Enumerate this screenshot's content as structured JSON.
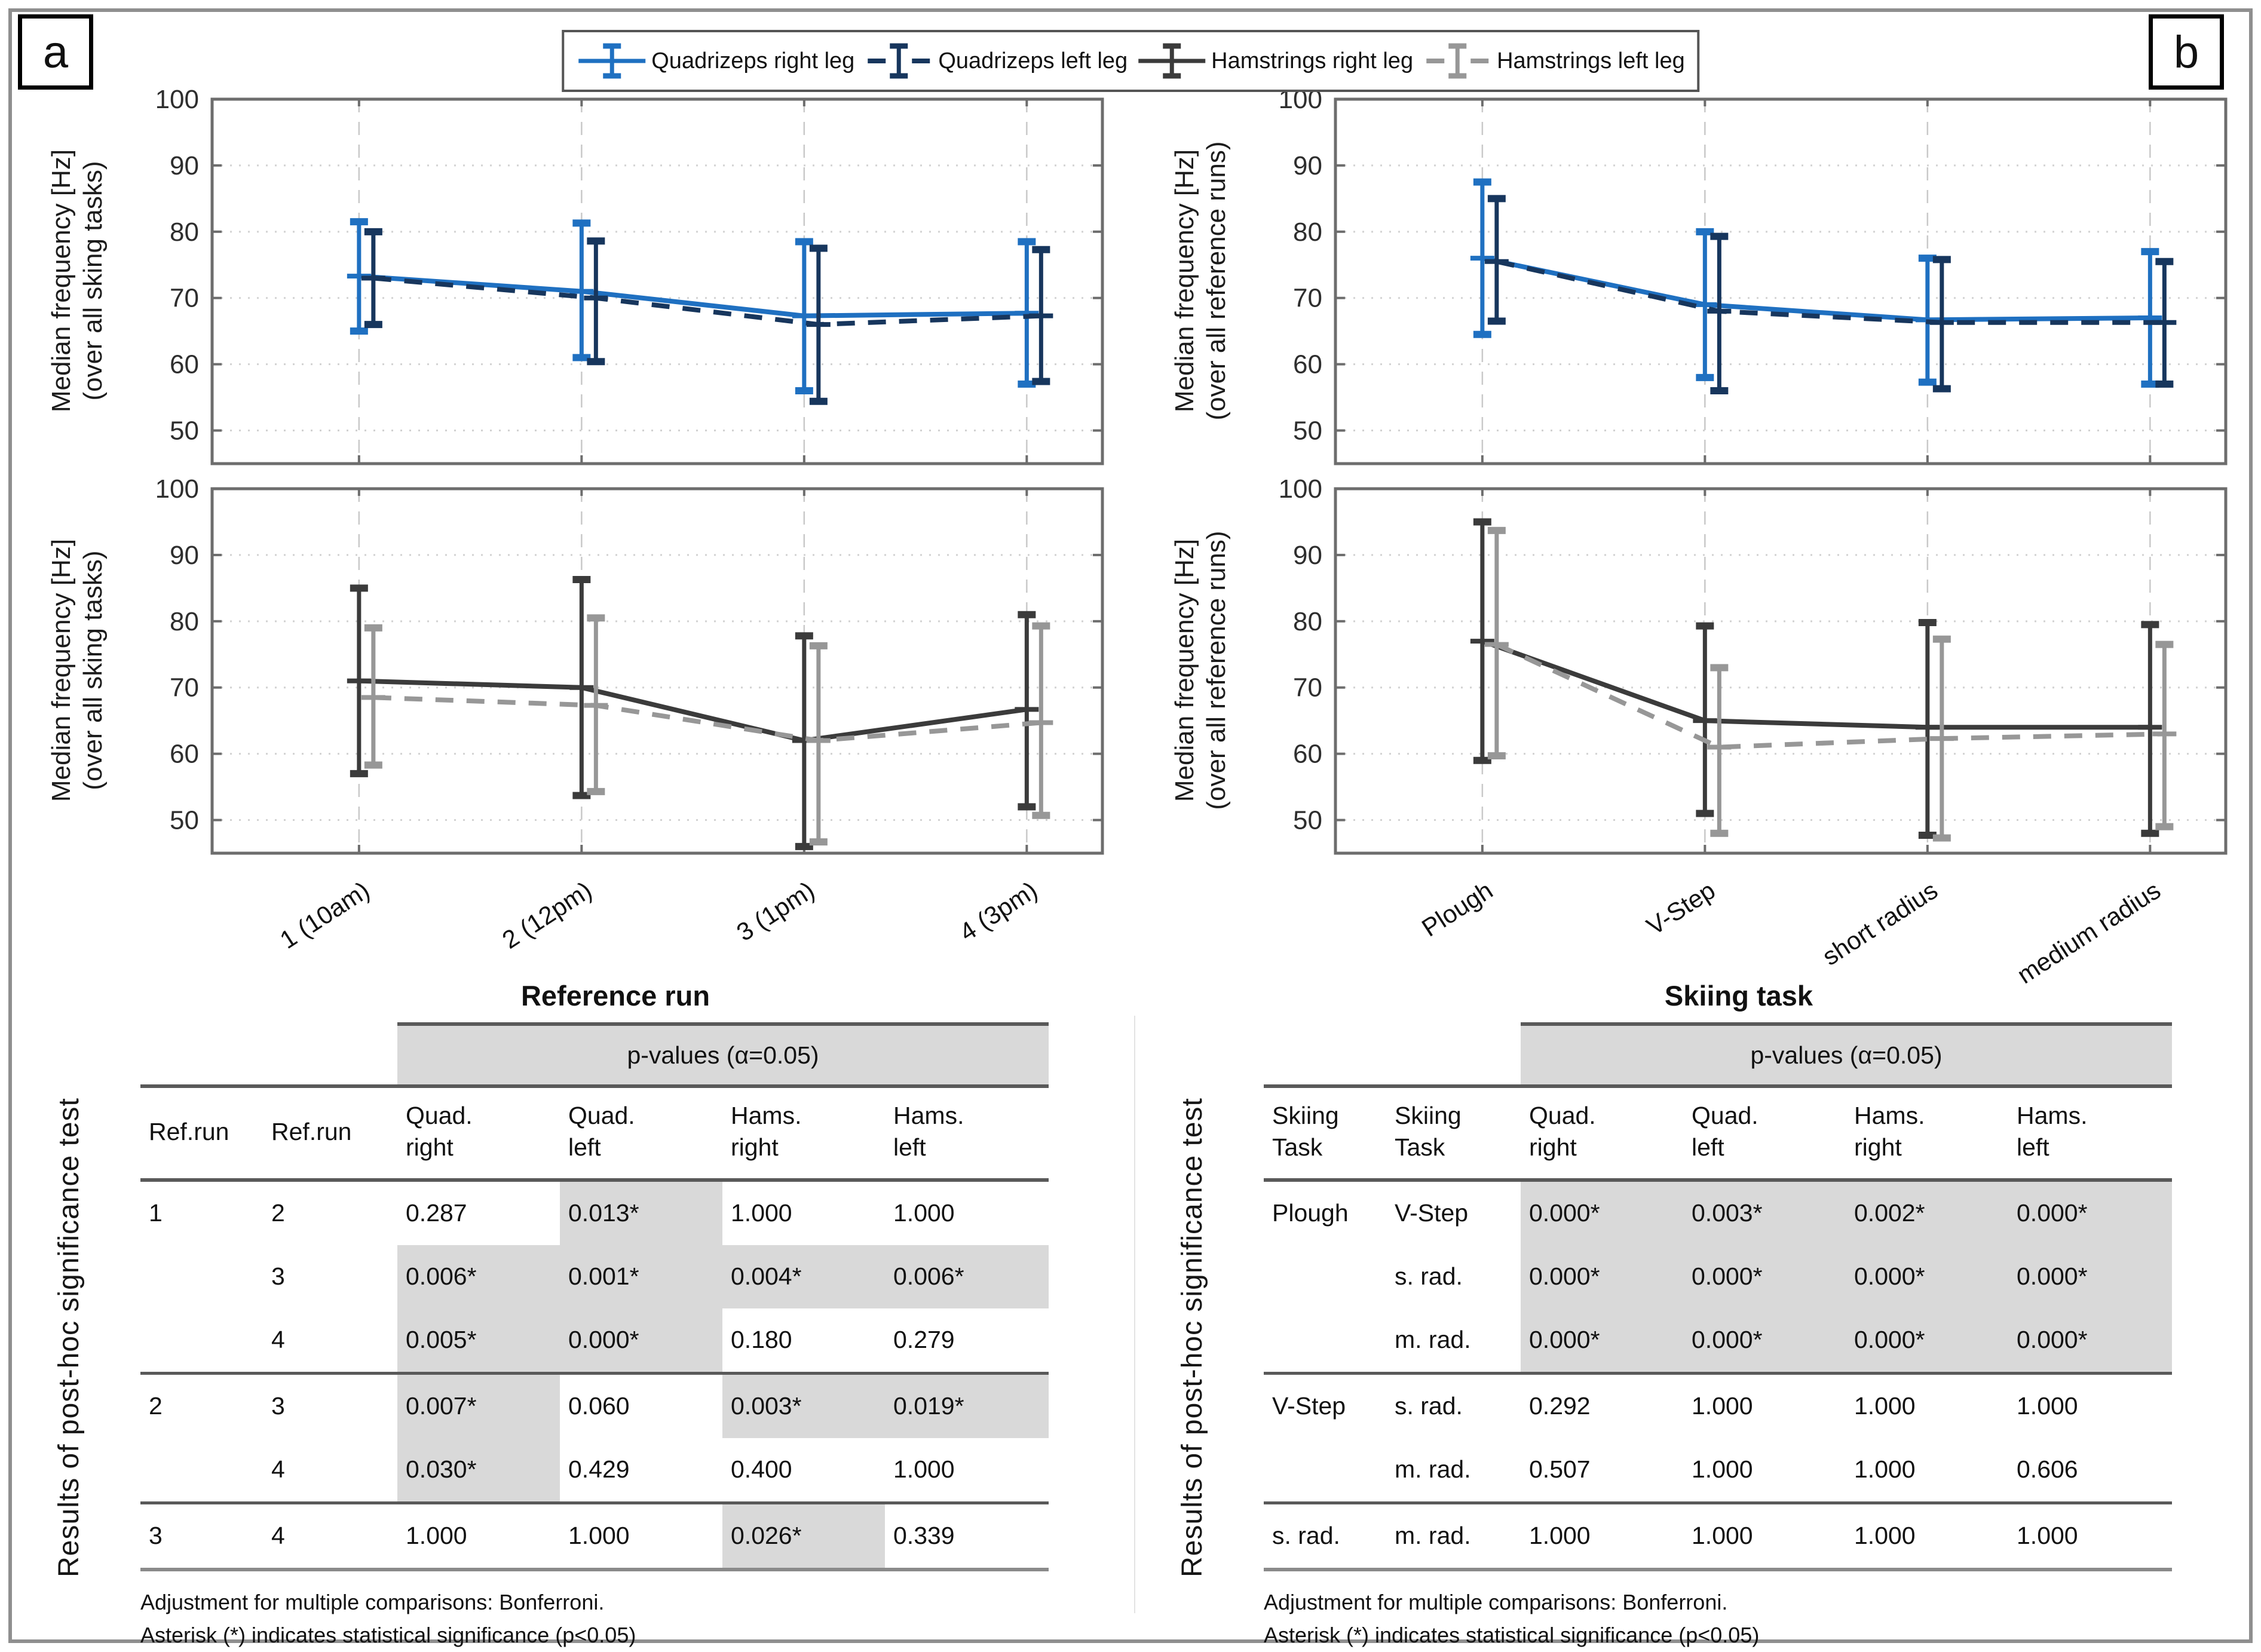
{
  "figure": {
    "panel_a_label": "a",
    "panel_b_label": "b"
  },
  "legend": {
    "items": [
      {
        "label": "Quadrizeps right leg",
        "color": "#1f70c1",
        "dash": "solid"
      },
      {
        "label": "Quadrizeps left leg",
        "color": "#17365d",
        "dash": "dashed"
      },
      {
        "label": "Hamstrings right leg",
        "color": "#3b3b3b",
        "dash": "solid"
      },
      {
        "label": "Hamstrings left leg",
        "color": "#979797",
        "dash": "dashed"
      }
    ]
  },
  "chart_data": [
    {
      "id": "chart-a-quad",
      "type": "line",
      "ylabel_line1": "Median frequency [Hz]",
      "ylabel_line2": "(over all sking tasks)",
      "ylim": [
        45,
        100
      ],
      "yticks": [
        50,
        60,
        70,
        80,
        90,
        100
      ],
      "grid": true,
      "categories": [
        "1 (10am)",
        "2 (12pm)",
        "3 (1pm)",
        "4 (3pm)"
      ],
      "xlabel": "Reference run",
      "series": [
        {
          "name": "Quadrizeps right leg",
          "color": "#1f70c1",
          "dash": "solid",
          "mean": [
            73.3,
            71.0,
            67.3,
            67.7
          ],
          "lo": [
            65.0,
            61.0,
            56.0,
            57.0
          ],
          "hi": [
            81.5,
            81.3,
            78.5,
            78.5
          ]
        },
        {
          "name": "Quadrizeps left leg",
          "color": "#17365d",
          "dash": "dashed",
          "mean": [
            73.0,
            70.0,
            66.0,
            67.3
          ],
          "lo": [
            66.0,
            60.4,
            54.4,
            57.4
          ],
          "hi": [
            80.0,
            78.6,
            77.5,
            77.3
          ]
        }
      ]
    },
    {
      "id": "chart-a-hams",
      "type": "line",
      "ylabel_line1": "Median frequency [Hz]",
      "ylabel_line2": "(over all sking tasks)",
      "ylim": [
        45,
        100
      ],
      "yticks": [
        50,
        60,
        70,
        80,
        90,
        100
      ],
      "grid": true,
      "categories": [
        "1 (10am)",
        "2 (12pm)",
        "3 (1pm)",
        "4 (3pm)"
      ],
      "xlabel": "Reference run",
      "series": [
        {
          "name": "Hamstrings right leg",
          "color": "#3b3b3b",
          "dash": "solid",
          "mean": [
            71.0,
            70.0,
            62.0,
            66.7
          ],
          "lo": [
            57.0,
            53.7,
            46.0,
            52.0
          ],
          "hi": [
            85.0,
            86.3,
            77.8,
            81.0
          ]
        },
        {
          "name": "Hamstrings left leg",
          "color": "#979797",
          "dash": "dashed",
          "mean": [
            68.5,
            67.3,
            62.0,
            64.7
          ],
          "lo": [
            58.3,
            54.3,
            46.7,
            50.7
          ],
          "hi": [
            79.0,
            80.5,
            76.3,
            79.3
          ]
        }
      ]
    },
    {
      "id": "chart-b-quad",
      "type": "line",
      "ylabel_line1": "Median frequency [Hz]",
      "ylabel_line2": "(over all reference runs)",
      "ylim": [
        45,
        100
      ],
      "yticks": [
        50,
        60,
        70,
        80,
        90,
        100
      ],
      "grid": true,
      "categories": [
        "Plough",
        "V-Step",
        "short radius",
        "medium radius"
      ],
      "xlabel": "Skiing task",
      "series": [
        {
          "name": "Quadrizeps right leg",
          "color": "#1f70c1",
          "dash": "solid",
          "mean": [
            76.0,
            69.0,
            66.7,
            67.0
          ],
          "lo": [
            64.5,
            58.0,
            57.3,
            57.0
          ],
          "hi": [
            87.5,
            80.0,
            76.0,
            77.0
          ]
        },
        {
          "name": "Quadrizeps left leg",
          "color": "#17365d",
          "dash": "dashed",
          "mean": [
            75.5,
            68.0,
            66.3,
            66.3
          ],
          "lo": [
            66.5,
            56.0,
            56.3,
            57.0
          ],
          "hi": [
            85.0,
            79.3,
            75.8,
            75.5
          ]
        }
      ]
    },
    {
      "id": "chart-b-hams",
      "type": "line",
      "ylabel_line1": "Median frequency [Hz]",
      "ylabel_line2": "(over all reference runs)",
      "ylim": [
        45,
        100
      ],
      "yticks": [
        50,
        60,
        70,
        80,
        90,
        100
      ],
      "grid": true,
      "categories": [
        "Plough",
        "V-Step",
        "short radius",
        "medium radius"
      ],
      "xlabel": "Skiing task",
      "series": [
        {
          "name": "Hamstrings right leg",
          "color": "#3b3b3b",
          "dash": "solid",
          "mean": [
            77.0,
            65.0,
            64.0,
            64.0
          ],
          "lo": [
            59.0,
            51.0,
            47.7,
            48.0
          ],
          "hi": [
            95.0,
            79.3,
            79.8,
            79.5
          ]
        },
        {
          "name": "Hamstrings left leg",
          "color": "#979797",
          "dash": "dashed",
          "mean": [
            76.5,
            61.0,
            62.3,
            63.0
          ],
          "lo": [
            59.7,
            48.0,
            47.3,
            49.0
          ],
          "hi": [
            93.7,
            73.0,
            77.3,
            76.5
          ]
        }
      ]
    }
  ],
  "tables": {
    "highlight_color": "#d9d9d9",
    "left": {
      "side_label": "Results of post-hoc significance test",
      "pvalues_header": "p-values (α=0.05)",
      "col1_header": "Ref.run",
      "col2_header": "Ref.run",
      "value_headers": [
        "Quad.\nright",
        "Quad.\nleft",
        "Hams.\nright",
        "Hams.\nleft"
      ],
      "groups": [
        {
          "rows": [
            {
              "c1": "1",
              "c2": "2",
              "vals": [
                {
                  "v": "0.287",
                  "sig": false
                },
                {
                  "v": "0.013*",
                  "sig": true
                },
                {
                  "v": "1.000",
                  "sig": false
                },
                {
                  "v": "1.000",
                  "sig": false
                }
              ]
            },
            {
              "c1": "",
              "c2": "3",
              "vals": [
                {
                  "v": "0.006*",
                  "sig": true
                },
                {
                  "v": "0.001*",
                  "sig": true
                },
                {
                  "v": "0.004*",
                  "sig": true
                },
                {
                  "v": "0.006*",
                  "sig": true
                }
              ]
            },
            {
              "c1": "",
              "c2": "4",
              "vals": [
                {
                  "v": "0.005*",
                  "sig": true
                },
                {
                  "v": "0.000*",
                  "sig": true
                },
                {
                  "v": "0.180",
                  "sig": false
                },
                {
                  "v": "0.279",
                  "sig": false
                }
              ]
            }
          ]
        },
        {
          "rows": [
            {
              "c1": "2",
              "c2": "3",
              "vals": [
                {
                  "v": "0.007*",
                  "sig": true
                },
                {
                  "v": "0.060",
                  "sig": false
                },
                {
                  "v": "0.003*",
                  "sig": true
                },
                {
                  "v": "0.019*",
                  "sig": true
                }
              ]
            },
            {
              "c1": "",
              "c2": "4",
              "vals": [
                {
                  "v": "0.030*",
                  "sig": true
                },
                {
                  "v": "0.429",
                  "sig": false
                },
                {
                  "v": "0.400",
                  "sig": false
                },
                {
                  "v": "1.000",
                  "sig": false
                }
              ]
            }
          ]
        },
        {
          "rows": [
            {
              "c1": "3",
              "c2": "4",
              "vals": [
                {
                  "v": "1.000",
                  "sig": false
                },
                {
                  "v": "1.000",
                  "sig": false
                },
                {
                  "v": "0.026*",
                  "sig": true
                },
                {
                  "v": "0.339",
                  "sig": false
                }
              ]
            }
          ]
        }
      ],
      "footnotes": [
        "Adjustment for multiple comparisons: Bonferroni.",
        "Asterisk (*) indicates statistical significance (p<0.05)"
      ]
    },
    "right": {
      "side_label": "Results of post-hoc significance test",
      "pvalues_header": "p-values (α=0.05)",
      "col1_header": "Skiing\nTask",
      "col2_header": "Skiing\nTask",
      "value_headers": [
        "Quad.\nright",
        "Quad.\nleft",
        "Hams.\nright",
        "Hams.\nleft"
      ],
      "groups": [
        {
          "rows": [
            {
              "c1": "Plough",
              "c2": "V-Step",
              "vals": [
                {
                  "v": "0.000*",
                  "sig": true
                },
                {
                  "v": "0.003*",
                  "sig": true
                },
                {
                  "v": "0.002*",
                  "sig": true
                },
                {
                  "v": "0.000*",
                  "sig": true
                }
              ]
            },
            {
              "c1": "",
              "c2": "s. rad.",
              "vals": [
                {
                  "v": "0.000*",
                  "sig": true
                },
                {
                  "v": "0.000*",
                  "sig": true
                },
                {
                  "v": "0.000*",
                  "sig": true
                },
                {
                  "v": "0.000*",
                  "sig": true
                }
              ]
            },
            {
              "c1": "",
              "c2": "m. rad.",
              "vals": [
                {
                  "v": "0.000*",
                  "sig": true
                },
                {
                  "v": "0.000*",
                  "sig": true
                },
                {
                  "v": "0.000*",
                  "sig": true
                },
                {
                  "v": "0.000*",
                  "sig": true
                }
              ]
            }
          ]
        },
        {
          "rows": [
            {
              "c1": "V-Step",
              "c2": "s. rad.",
              "vals": [
                {
                  "v": "0.292",
                  "sig": false
                },
                {
                  "v": "1.000",
                  "sig": false
                },
                {
                  "v": "1.000",
                  "sig": false
                },
                {
                  "v": "1.000",
                  "sig": false
                }
              ]
            },
            {
              "c1": "",
              "c2": "m. rad.",
              "vals": [
                {
                  "v": "0.507",
                  "sig": false
                },
                {
                  "v": "1.000",
                  "sig": false
                },
                {
                  "v": "1.000",
                  "sig": false
                },
                {
                  "v": "0.606",
                  "sig": false
                }
              ]
            }
          ]
        },
        {
          "rows": [
            {
              "c1": "s. rad.",
              "c2": "m. rad.",
              "vals": [
                {
                  "v": "1.000",
                  "sig": false
                },
                {
                  "v": "1.000",
                  "sig": false
                },
                {
                  "v": "1.000",
                  "sig": false
                },
                {
                  "v": "1.000",
                  "sig": false
                }
              ]
            }
          ]
        }
      ],
      "footnotes": [
        "Adjustment for multiple comparisons: Bonferroni.",
        "Asterisk (*) indicates statistical significance (p<0.05)"
      ]
    }
  }
}
